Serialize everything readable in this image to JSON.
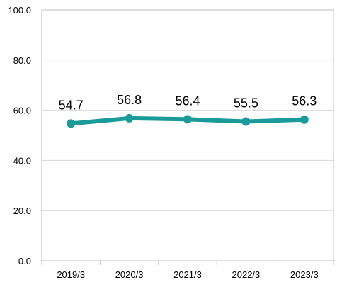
{
  "chart_data": {
    "type": "line",
    "categories": [
      "2019/3",
      "2020/3",
      "2021/3",
      "2022/3",
      "2023/3"
    ],
    "series": [
      {
        "values": [
          54.7,
          56.8,
          56.4,
          55.5,
          56.3
        ],
        "labels": [
          "54.7",
          "56.8",
          "56.4",
          "55.5",
          "56.3"
        ],
        "color": "#1a9a98"
      }
    ],
    "yticks": [
      "0.0",
      "20.0",
      "40.0",
      "60.0",
      "80.0",
      "100.0"
    ],
    "ylim": [
      0,
      100
    ],
    "grid": true,
    "legend": "none",
    "title": "",
    "xlabel": "",
    "ylabel": ""
  }
}
